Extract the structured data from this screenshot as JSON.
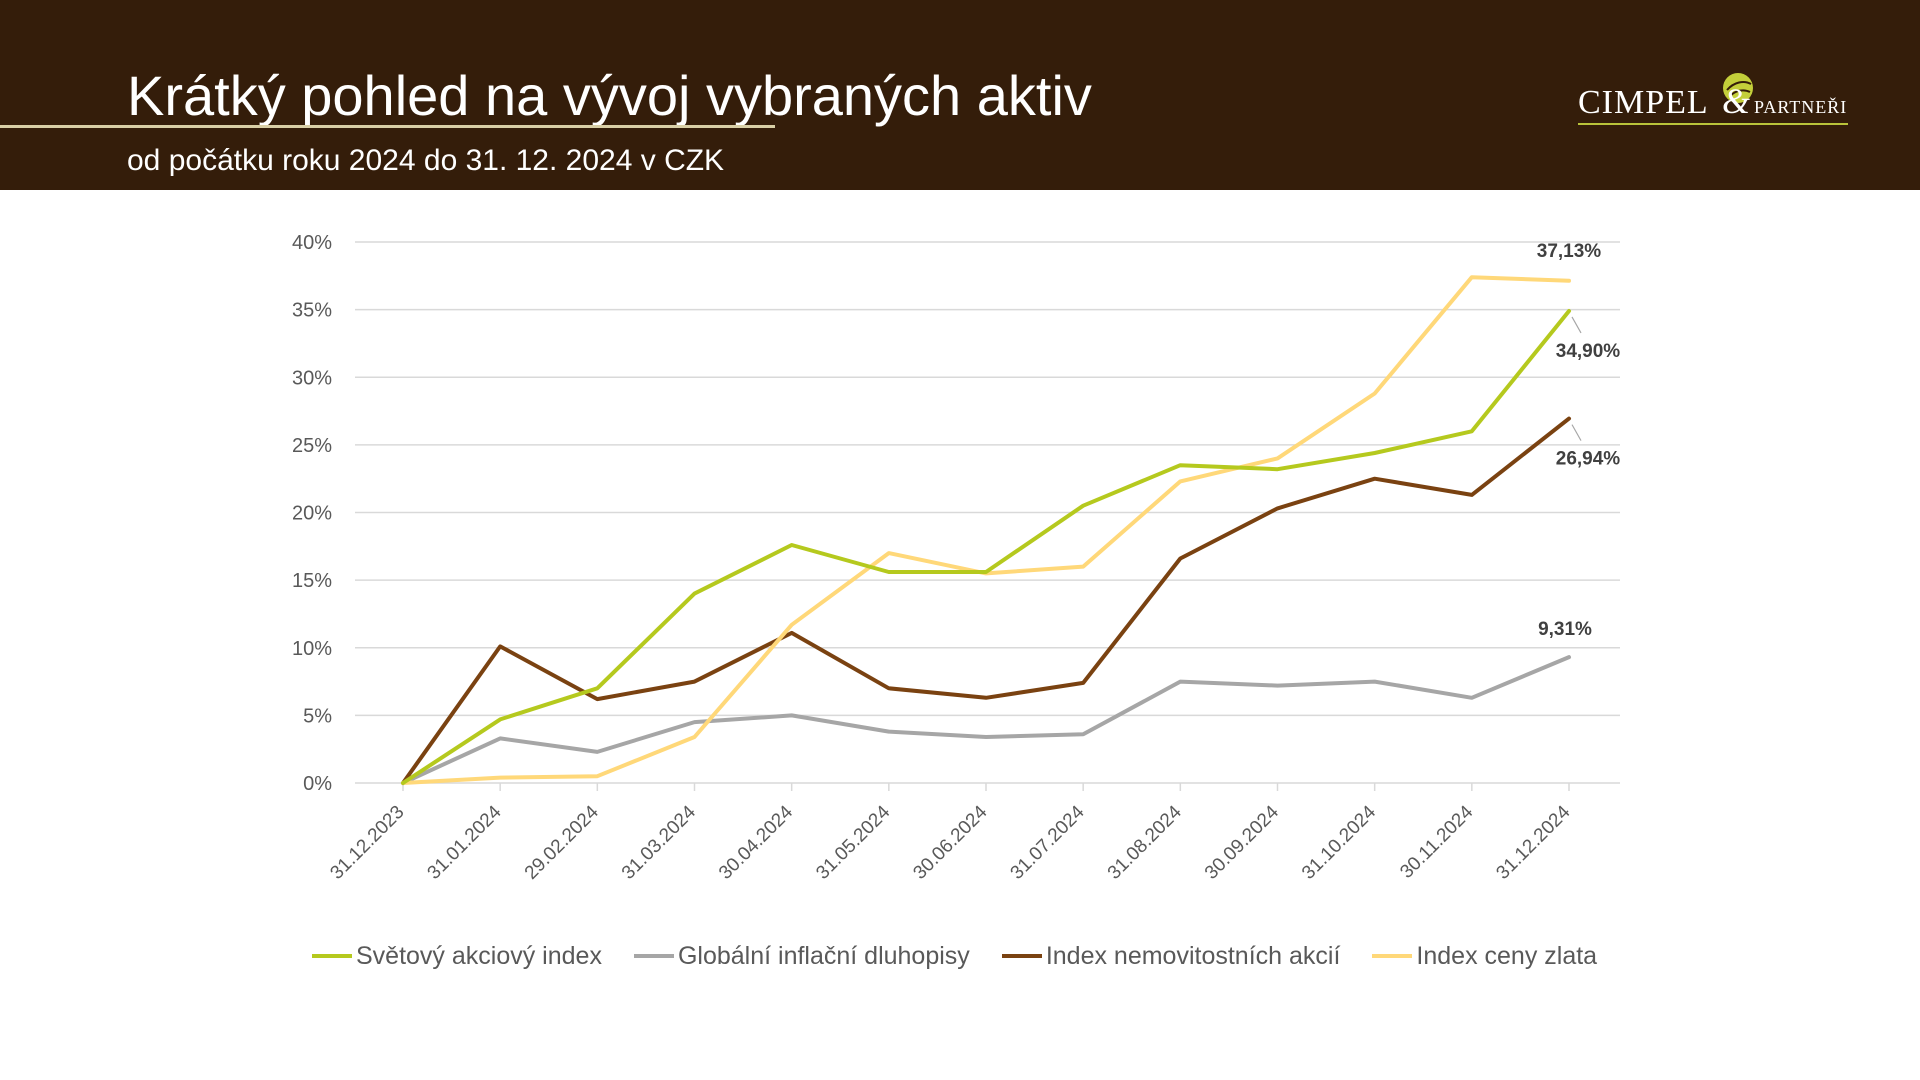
{
  "header": {
    "title": "Krátký pohled na vývoj vybraných aktiv",
    "subtitle": "od počátku roku 2024 do 31. 12. 2024 v CZK",
    "logo_text_main": "CIMPEL",
    "logo_text_amp": "&",
    "logo_text_small": "PARTNEŘI",
    "colors": {
      "background": "#341d0a",
      "text": "#ffffff",
      "logo_accent": "#b9c33a"
    }
  },
  "chart_data": {
    "type": "line",
    "title": "",
    "xlabel": "",
    "ylabel": "",
    "x": [
      "31.12.2023",
      "31.01.2024",
      "29.02.2024",
      "31.03.2024",
      "30.04.2024",
      "31.05.2024",
      "30.06.2024",
      "31.07.2024",
      "31.08.2024",
      "30.09.2024",
      "31.10.2024",
      "30.11.2024",
      "31.12.2024"
    ],
    "yticks": [
      "0%",
      "5%",
      "10%",
      "15%",
      "20%",
      "25%",
      "30%",
      "35%",
      "40%"
    ],
    "ylim": [
      0,
      40
    ],
    "grid": true,
    "legend_position": "bottom",
    "series": [
      {
        "name": "Světový akciový index",
        "color": "#b5c91e",
        "values": [
          0,
          4.7,
          7.0,
          14.0,
          17.6,
          15.6,
          15.6,
          20.5,
          23.5,
          23.2,
          24.4,
          26.0,
          34.9
        ],
        "end_label": "34,90%"
      },
      {
        "name": "Globální inflační dluhopisy",
        "color": "#a6a6a6",
        "values": [
          0,
          3.3,
          2.3,
          4.5,
          5.0,
          3.8,
          3.4,
          3.6,
          7.5,
          7.2,
          7.5,
          6.3,
          9.31
        ],
        "end_label": "9,31%"
      },
      {
        "name": "Index nemovitostních akcií",
        "color": "#7a4211",
        "values": [
          0,
          10.1,
          6.2,
          7.5,
          11.1,
          7.0,
          6.3,
          7.4,
          16.6,
          20.3,
          22.5,
          21.3,
          26.94
        ],
        "end_label": "26,94%"
      },
      {
        "name": "Index ceny zlata",
        "color": "#ffd879",
        "values": [
          0,
          0.4,
          0.5,
          3.4,
          11.7,
          17.0,
          15.5,
          16.0,
          22.3,
          24.0,
          28.8,
          37.4,
          37.13
        ],
        "end_label": "37,13%"
      }
    ]
  }
}
